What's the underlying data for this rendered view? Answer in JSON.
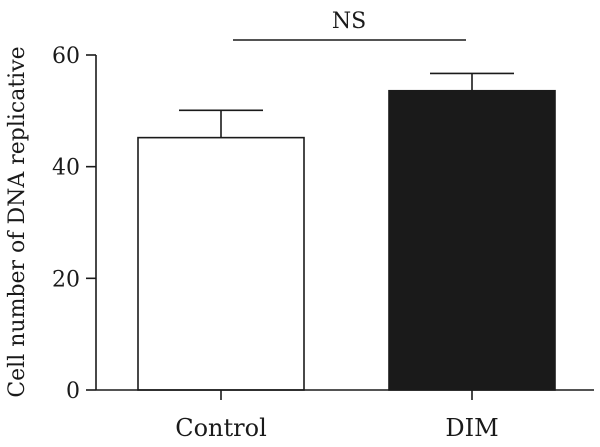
{
  "chart_data": {
    "type": "bar",
    "title": "",
    "xlabel": "",
    "ylabel": "Cell number of DNA replicative",
    "ylim": [
      0,
      60
    ],
    "yticks": [
      0,
      20,
      40,
      60
    ],
    "grid": false,
    "categories": [
      "Control",
      "DIM"
    ],
    "values": [
      45.2,
      53.6
    ],
    "errors": [
      4.9,
      3.1
    ],
    "bar_colors": [
      "#ffffff",
      "#1a1a1a"
    ],
    "annotation": {
      "text": "NS",
      "between": [
        "Control",
        "DIM"
      ]
    }
  }
}
